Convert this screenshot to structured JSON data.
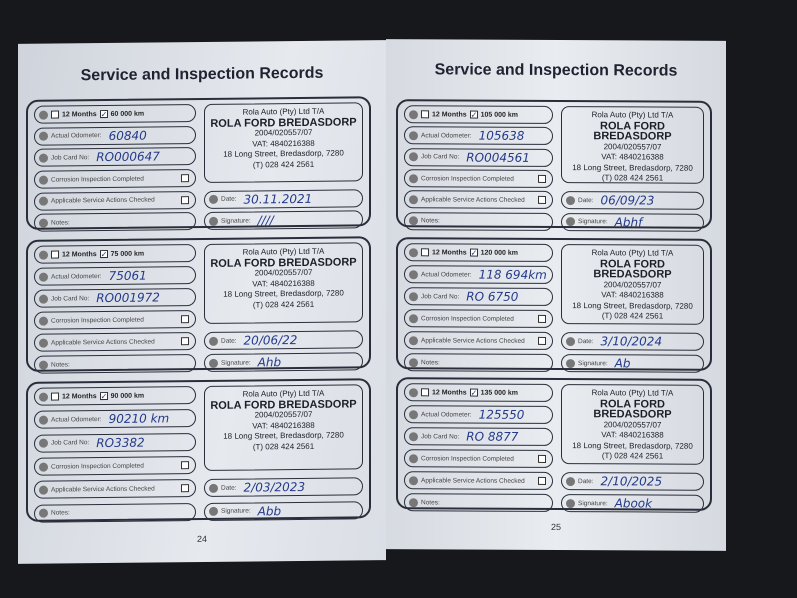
{
  "left_page": {
    "title": "Service and Inspection Records",
    "page_number": "24"
  },
  "right_page": {
    "title": "Service and Inspection Records",
    "page_number": "25"
  },
  "labels": {
    "months": "12 Months",
    "odometer": "Actual Odometer:",
    "job_card": "Job Card No:",
    "corrosion": "Corrosion Inspection Completed",
    "service_actions": "Applicable Service Actions Checked",
    "notes": "Notes:",
    "date": "Date:",
    "signature": "Signature:"
  },
  "stamp": {
    "line1": "Rola Auto (Pty) Ltd T/A",
    "line2": "ROLA FORD BREDASDORP",
    "line3": "2004/020557/07",
    "line4": "VAT: 4840216388",
    "line5": "18 Long Street, Bredasdorp, 7280",
    "line6": "(T) 028 424 2561"
  },
  "records": [
    {
      "interval": "60 000 km",
      "odometer": "60840",
      "job_card": "RO000647",
      "date": "30.11.2021",
      "signature": "////",
      "corrosion_checked": true,
      "actions_checked": true
    },
    {
      "interval": "75 000 km",
      "odometer": "75061",
      "job_card": "RO001972",
      "date": "20/06/22",
      "signature": "Ahb",
      "corrosion_checked": false,
      "actions_checked": false
    },
    {
      "interval": "90 000 km",
      "odometer": "90210 km",
      "job_card": "RO3382",
      "date": "2/03/2023",
      "signature": "Abb",
      "corrosion_checked": false,
      "actions_checked": false
    },
    {
      "interval": "105 000 km",
      "odometer": "105638",
      "job_card": "RO004561",
      "date": "06/09/23",
      "signature": "Abhf",
      "corrosion_checked": false,
      "actions_checked": false
    },
    {
      "interval": "120 000 km",
      "odometer": "118 694km",
      "job_card": "RO 6750",
      "date": "3/10/2024",
      "signature": "Ab",
      "corrosion_checked": false,
      "actions_checked": false
    },
    {
      "interval": "135 000 km",
      "odometer": "125550",
      "job_card": "RO 8877",
      "date": "2/10/2025",
      "signature": "Abook",
      "corrosion_checked": false,
      "actions_checked": false
    }
  ]
}
